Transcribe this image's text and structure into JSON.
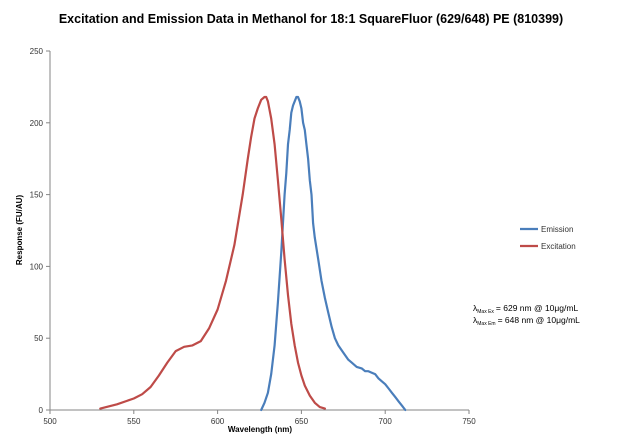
{
  "chart_data": {
    "type": "line",
    "title": "Excitation and Emission Data in Methanol for 18:1 SquareFluor (629/648) PE (810399)",
    "xlabel": "Wavelength (nm)",
    "ylabel": "Response (FU/AU)",
    "xlim": [
      500,
      750
    ],
    "ylim": [
      0,
      250
    ],
    "x_ticks": [
      "500",
      "550",
      "600",
      "650",
      "700",
      "750"
    ],
    "y_ticks": [
      "0",
      "50",
      "100",
      "150",
      "200",
      "250"
    ],
    "grid": false,
    "legend_position": "right",
    "series": [
      {
        "name": "Emission",
        "color": "#4a7ebb",
        "x": [
          626,
          628,
          630,
          632,
          634,
          636,
          638,
          640,
          641,
          642,
          643,
          644,
          645,
          646,
          647,
          648,
          649,
          650,
          651,
          652,
          653,
          654,
          655,
          656,
          657,
          658,
          660,
          662,
          664,
          666,
          668,
          670,
          672,
          675,
          678,
          680,
          683,
          686,
          688,
          690,
          692,
          694,
          696,
          698,
          700,
          702,
          704,
          706,
          708,
          710,
          712
        ],
        "y": [
          0,
          5,
          12,
          25,
          45,
          75,
          110,
          150,
          165,
          185,
          195,
          207,
          212,
          215,
          218,
          218,
          215,
          210,
          200,
          195,
          185,
          175,
          160,
          150,
          130,
          120,
          105,
          90,
          78,
          68,
          58,
          50,
          45,
          40,
          35,
          33,
          30,
          29,
          27,
          27,
          26,
          25,
          22,
          20,
          18,
          15,
          12,
          9,
          6,
          3,
          0
        ]
      },
      {
        "name": "Excitation",
        "color": "#be4b48",
        "x": [
          530,
          540,
          550,
          555,
          560,
          565,
          570,
          575,
          580,
          585,
          590,
          595,
          600,
          605,
          610,
          615,
          618,
          620,
          622,
          624,
          626,
          628,
          629,
          630,
          632,
          634,
          636,
          638,
          640,
          642,
          644,
          646,
          648,
          650,
          652,
          655,
          658,
          661,
          664
        ],
        "y": [
          1,
          4,
          8,
          11,
          16,
          24,
          33,
          41,
          44,
          45,
          48,
          57,
          70,
          90,
          115,
          150,
          175,
          190,
          203,
          210,
          216,
          218,
          218,
          215,
          203,
          185,
          160,
          133,
          105,
          80,
          60,
          45,
          33,
          24,
          17,
          10,
          5,
          2,
          1
        ]
      }
    ],
    "annotations": [
      {
        "lambda": "λ",
        "sub": "Max Ex",
        "value": "= 629 nm @ 10μg/mL"
      },
      {
        "lambda": "λ",
        "sub": "Max Em",
        "value": "= 648 nm @ 10μg/mL"
      }
    ]
  }
}
